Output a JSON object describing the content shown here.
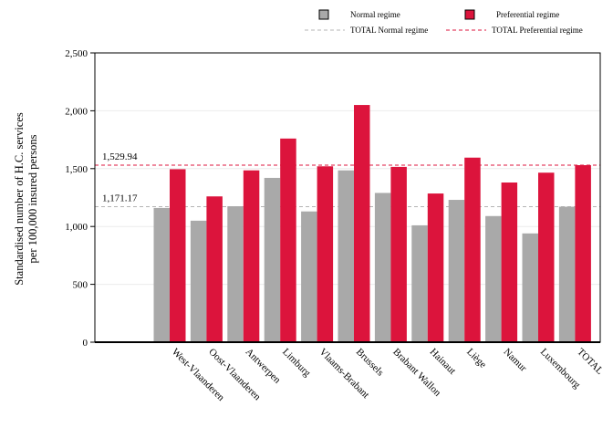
{
  "chart_data": {
    "type": "bar",
    "ylabel_lines": [
      "Standardised number of H.C. services",
      "per 100,000 insured persons"
    ],
    "categories": [
      "West-Vlaanderen",
      "Oost-Vlaanderen",
      "Antwerpen",
      "Limburg",
      "Vlaams-Brabant",
      "Brussels",
      "Brabant Wallon",
      "Hainaut",
      "Liège",
      "Namur",
      "Luxembourg",
      "TOTAL"
    ],
    "series": [
      {
        "name": "Normal regime",
        "color": "#a9a9a9",
        "values": [
          1160,
          1050,
          1175,
          1420,
          1130,
          1485,
          1290,
          1010,
          1230,
          1090,
          940,
          1171.17
        ]
      },
      {
        "name": "Preferential regime",
        "color": "#dc143c",
        "values": [
          1495,
          1260,
          1485,
          1760,
          1520,
          2050,
          1515,
          1285,
          1595,
          1380,
          1465,
          1529.94
        ]
      }
    ],
    "reference_lines": [
      {
        "name": "TOTAL Normal regime",
        "value": 1171.17,
        "label": "1,171.17",
        "color": "#b4b4b4"
      },
      {
        "name": "TOTAL Preferential regime",
        "value": 1529.94,
        "label": "1,529.94",
        "color": "#dc143c"
      }
    ],
    "yticks": [
      0,
      500,
      1000,
      1500,
      2000,
      2500
    ],
    "ytick_labels": [
      "0",
      "500",
      "1,000",
      "1,500",
      "2,000",
      "2,500"
    ],
    "ylim": [
      0,
      2500
    ],
    "grid": true,
    "legend_placement": "top-right"
  }
}
